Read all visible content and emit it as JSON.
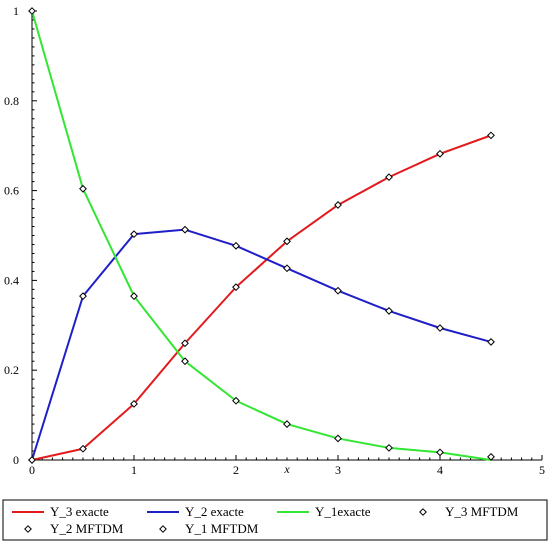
{
  "chart_data": {
    "type": "line",
    "xlabel": "x",
    "ylabel": "",
    "xlim": [
      0,
      5
    ],
    "ylim": [
      0,
      1
    ],
    "xticks": [
      0,
      1,
      2,
      3,
      4,
      5
    ],
    "yticks": [
      0,
      0.2,
      0.4,
      0.6,
      0.8,
      1
    ],
    "grid": false,
    "legend_position": "bottom",
    "x": [
      0,
      0.5,
      1.0,
      1.5,
      2.0,
      2.5,
      3.0,
      3.5,
      4.0,
      4.5
    ],
    "series": [
      {
        "name": "Y_3 exacte",
        "style": "line",
        "color": "#e31a1c",
        "values": [
          0,
          0.025,
          0.125,
          0.26,
          0.385,
          0.487,
          0.568,
          0.63,
          0.682,
          0.723
        ]
      },
      {
        "name": "Y_2 exacte",
        "style": "line",
        "color": "#1f1fc8",
        "values": [
          0,
          0.365,
          0.503,
          0.513,
          0.477,
          0.427,
          0.377,
          0.332,
          0.294,
          0.263
        ]
      },
      {
        "name": "Y_1exacte",
        "style": "line",
        "color": "#33e633",
        "values": [
          1,
          0.604,
          0.365,
          0.22,
          0.132,
          0.08,
          0.048,
          0.027,
          0.017,
          0.0
        ]
      },
      {
        "name": "Y_3 MFTDM",
        "style": "marker",
        "color": "#000000",
        "values": [
          0,
          0.025,
          0.125,
          0.26,
          0.385,
          0.487,
          0.568,
          0.63,
          0.682,
          0.723
        ]
      },
      {
        "name": "Y_2 MFTDM",
        "style": "marker",
        "color": "#000000",
        "values": [
          0,
          0.365,
          0.503,
          0.513,
          0.477,
          0.427,
          0.377,
          0.332,
          0.294,
          0.263
        ]
      },
      {
        "name": "Y_1 MFTDM",
        "style": "marker",
        "color": "#000000",
        "values": [
          1,
          0.604,
          0.365,
          0.22,
          0.132,
          0.08,
          0.048,
          0.027,
          0.017,
          0.007
        ]
      }
    ]
  }
}
